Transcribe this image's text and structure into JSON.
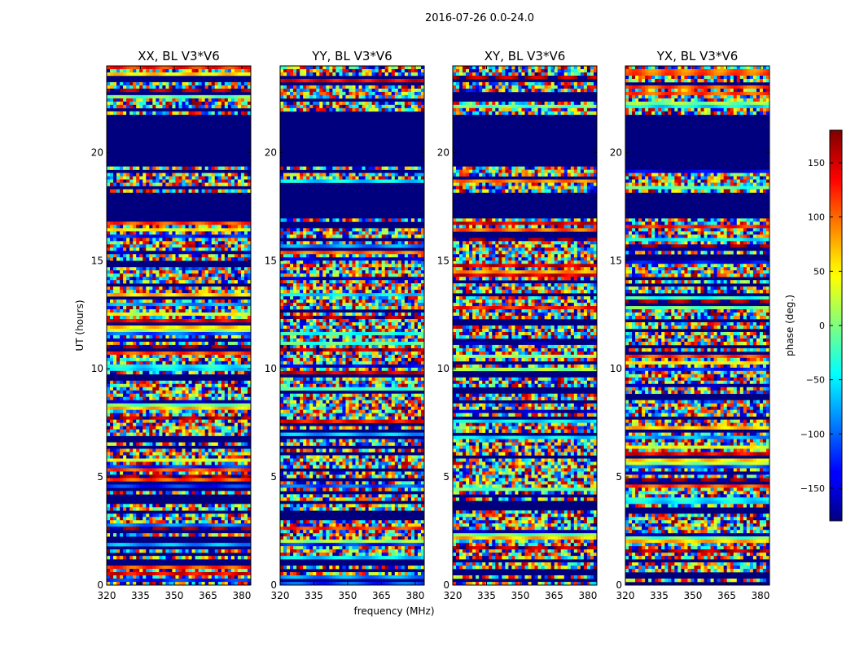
{
  "figure_title": "2016-07-26 0.0-24.0",
  "chart_data": {
    "type": "heatmap",
    "suptitle": "2016-07-26 0.0-24.0",
    "xlabel": "frequency (MHz)",
    "ylabel": "UT (hours)",
    "xlim": [
      320,
      384
    ],
    "ylim": [
      0,
      24
    ],
    "xticks": [
      320,
      335,
      350,
      365,
      380
    ],
    "yticks": [
      0,
      5,
      10,
      15,
      20
    ],
    "colorbar": {
      "label": "phase (deg.)",
      "range": [
        -180,
        180
      ],
      "ticks": [
        -150,
        -100,
        -50,
        0,
        50,
        100,
        150
      ],
      "colormap": "jet"
    },
    "panels": [
      {
        "title": "XX, BL V3*V6",
        "polarization": "XX"
      },
      {
        "title": "YY, BL V3*V6",
        "polarization": "YY"
      },
      {
        "title": "XY, BL V3*V6",
        "polarization": "XY"
      },
      {
        "title": "YX, BL V3*V6",
        "polarization": "YX"
      }
    ],
    "flagged_bands_hours": [
      [
        0.98,
        1.15
      ],
      [
        17.0,
        18.2
      ],
      [
        19.3,
        21.7
      ]
    ],
    "masked_color": "#00007f"
  }
}
